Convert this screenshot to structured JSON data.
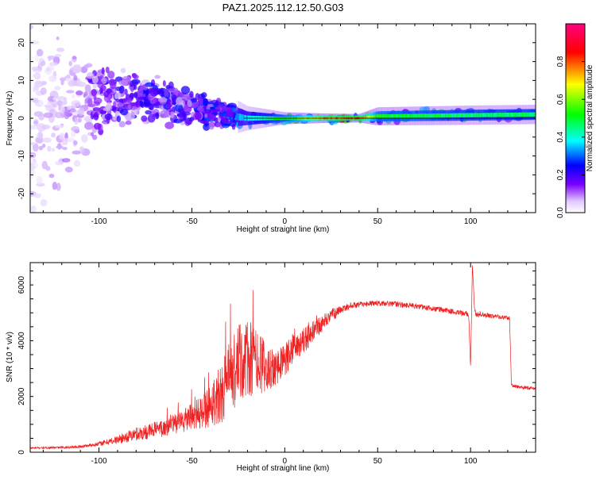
{
  "chart_data": [
    {
      "type": "heatmap",
      "title": "PAZ1.2025.112.12.50.G03",
      "xlabel": "Height of straight line (km)",
      "ylabel": "Frequency (Hz)",
      "xlim": [
        -137,
        135
      ],
      "ylim": [
        -25,
        25
      ],
      "xticks": [
        "-100",
        "-50",
        "0",
        "50",
        "100"
      ],
      "yticks": [
        "-20",
        "-10",
        "0",
        "10",
        "20"
      ],
      "colorbar": {
        "label": "Normalized spectral amplitude",
        "range": [
          0,
          1
        ],
        "ticks": [
          "0.0",
          "0.2",
          "0.4",
          "0.6",
          "0.8"
        ],
        "colors": [
          "#ffffff",
          "#7a00ff",
          "#0000ff",
          "#00ffff",
          "#00ff00",
          "#ffff00",
          "#ff0000",
          "#ff0080"
        ]
      },
      "signal": [
        {
          "x": -137,
          "center_hz": 0,
          "spread_hz": 25,
          "amp": 0.1
        },
        {
          "x": -100,
          "center_hz": 5,
          "spread_hz": 10,
          "amp": 0.2
        },
        {
          "x": -80,
          "center_hz": 6,
          "spread_hz": 6,
          "amp": 0.25
        },
        {
          "x": -55,
          "center_hz": 3,
          "spread_hz": 5,
          "amp": 0.28
        },
        {
          "x": -35,
          "center_hz": 1,
          "spread_hz": 4,
          "amp": 0.3
        },
        {
          "x": -20,
          "center_hz": 0,
          "spread_hz": 2,
          "amp": 0.4
        },
        {
          "x": 0,
          "center_hz": 0,
          "spread_hz": 1,
          "amp": 0.55
        },
        {
          "x": 20,
          "center_hz": 0,
          "spread_hz": 0.8,
          "amp": 0.8
        },
        {
          "x": 40,
          "center_hz": 0,
          "spread_hz": 0.7,
          "amp": 0.9
        },
        {
          "x": 50,
          "center_hz": 0.5,
          "spread_hz": 1.5,
          "amp": 0.55
        },
        {
          "x": 100,
          "center_hz": 0.8,
          "spread_hz": 1.6,
          "amp": 0.5
        },
        {
          "x": 135,
          "center_hz": 1,
          "spread_hz": 1.6,
          "amp": 0.5
        }
      ]
    },
    {
      "type": "line",
      "xlabel": "Height of straight line (km)",
      "ylabel": "SNR (10 * v/v)",
      "xlim": [
        -137,
        135
      ],
      "ylim": [
        0,
        6800
      ],
      "xticks": [
        "-100",
        "-50",
        "0",
        "50",
        "100"
      ],
      "yticks": [
        "0",
        "2000",
        "4000",
        "6000"
      ],
      "color": "#ee2222",
      "series": [
        {
          "x": [
            -137,
            -120,
            -110,
            -100,
            -90,
            -80,
            -70,
            -60,
            -50,
            -45,
            -40,
            -35,
            -30,
            -25,
            -20,
            -15,
            -10,
            -5,
            0,
            5,
            10,
            15,
            20,
            25,
            30,
            35,
            40,
            50,
            60,
            70,
            80,
            90,
            95,
            99,
            100,
            101,
            102,
            103,
            105,
            110,
            115,
            120,
            121,
            122,
            125,
            130,
            135
          ],
          "values": [
            150,
            170,
            200,
            300,
            450,
            650,
            800,
            1000,
            1250,
            1400,
            1700,
            2100,
            2600,
            3100,
            3300,
            3200,
            3000,
            3100,
            3300,
            3700,
            4000,
            4300,
            4600,
            4900,
            5100,
            5250,
            5300,
            5350,
            5300,
            5250,
            5150,
            5050,
            5000,
            4950,
            3000,
            6800,
            5200,
            4900,
            4950,
            4900,
            4850,
            4800,
            4800,
            2400,
            2350,
            2300,
            2300
          ],
          "noise": [
            30,
            40,
            50,
            80,
            150,
            250,
            300,
            400,
            500,
            600,
            800,
            1100,
            1300,
            1500,
            1500,
            1300,
            900,
            700,
            600,
            500,
            450,
            400,
            300,
            250,
            150,
            120,
            100,
            100,
            100,
            100,
            100,
            100,
            100,
            100,
            100,
            100,
            100,
            100,
            100,
            80,
            80,
            80,
            80,
            60,
            60,
            60,
            60
          ]
        }
      ]
    }
  ]
}
